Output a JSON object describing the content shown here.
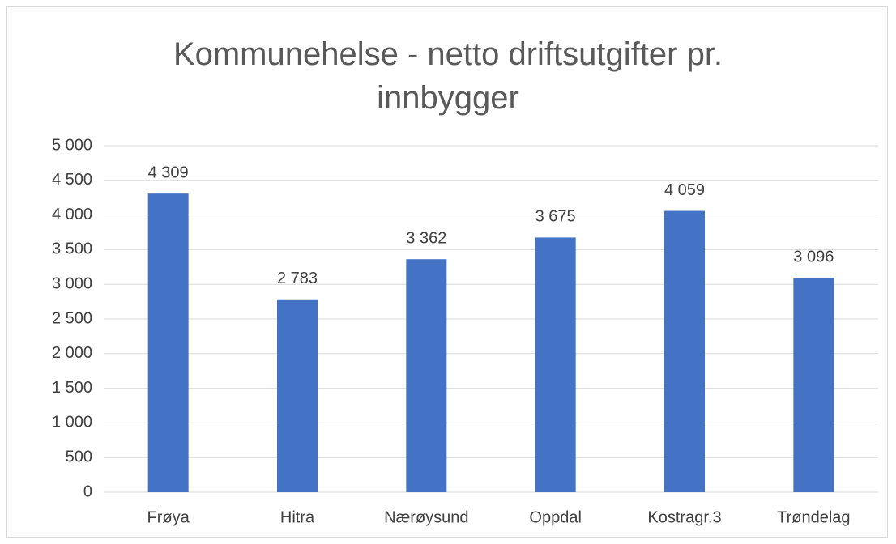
{
  "chart_data": {
    "type": "bar",
    "title": "Kommunehelse - netto driftsutgifter pr. innbygger",
    "categories": [
      "Frøya",
      "Hitra",
      "Nærøysund",
      "Oppdal",
      "Kostragr.3",
      "Trøndelag"
    ],
    "values": [
      4309,
      2783,
      3362,
      3675,
      4059,
      3096
    ],
    "value_labels": [
      "4 309",
      "2 783",
      "3 362",
      "3 675",
      "4 059",
      "3 096"
    ],
    "color": "#4472c4",
    "ylim": [
      0,
      5000
    ],
    "yticks": [
      0,
      {
        "value": 500,
        "label": "500"
      },
      {
        "value": 1000,
        "label": "1 000"
      },
      {
        "value": 1500,
        "label": "1 500"
      },
      {
        "value": 2000,
        "label": "2 000"
      },
      {
        "value": 2500,
        "label": "2 500"
      },
      {
        "value": 3000,
        "label": "3 000"
      },
      {
        "value": 3500,
        "label": "3 500"
      },
      {
        "value": 4000,
        "label": "4 000"
      },
      {
        "value": 4500,
        "label": "4 500"
      },
      {
        "value": 5000,
        "label": "5 000"
      }
    ],
    "grid": true
  }
}
